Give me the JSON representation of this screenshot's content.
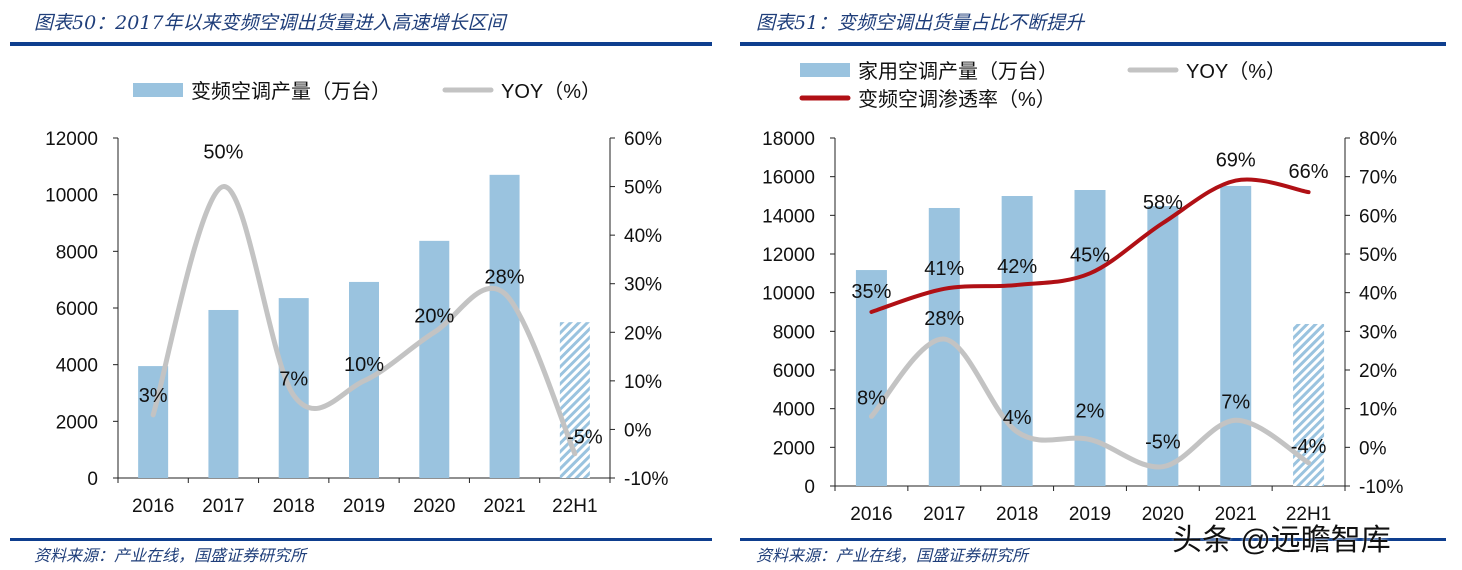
{
  "chart_data": [
    {
      "type": "bar+line",
      "title": "图表50：2017年以来变频空调出货量进入高速增长区间",
      "source": "资料来源：产业在线，国盛证券研究所",
      "categories": [
        "2016",
        "2017",
        "2018",
        "2019",
        "2020",
        "2021",
        "22H1"
      ],
      "left_axis": {
        "ylim": [
          0,
          12000
        ],
        "ticks": [
          "0",
          "2000",
          "4000",
          "6000",
          "8000",
          "10000",
          "12000"
        ]
      },
      "right_axis": {
        "ylim": [
          -10,
          60
        ],
        "ticks": [
          "-10%",
          "0%",
          "10%",
          "20%",
          "30%",
          "40%",
          "50%",
          "60%"
        ]
      },
      "legend_placement": "top",
      "series": [
        {
          "name": "变频空调产量（万台）",
          "type": "bar",
          "axis": "left",
          "color": "#9ac3df",
          "values": [
            3950,
            5930,
            6350,
            6920,
            8370,
            10700,
            5500
          ],
          "hatched_last": true
        },
        {
          "name": "YOY（%）",
          "type": "line",
          "axis": "right",
          "color": "#c3c3c3",
          "values": [
            3,
            50,
            7,
            10,
            20,
            28,
            -5
          ],
          "labels": [
            "3%",
            "50%",
            "7%",
            "10%",
            "20%",
            "28%",
            "-5%"
          ]
        }
      ]
    },
    {
      "type": "bar+line",
      "title": "图表51：变频空调出货量占比不断提升",
      "source": "资料来源：产业在线，国盛证券研究所",
      "categories": [
        "2016",
        "2017",
        "2018",
        "2019",
        "2020",
        "2021",
        "22H1"
      ],
      "left_axis": {
        "ylim": [
          0,
          18000
        ],
        "ticks": [
          "0",
          "2000",
          "4000",
          "6000",
          "8000",
          "10000",
          "12000",
          "14000",
          "16000",
          "18000"
        ]
      },
      "right_axis": {
        "ylim": [
          -10,
          80
        ],
        "ticks": [
          "-10%",
          "0%",
          "10%",
          "20%",
          "30%",
          "40%",
          "50%",
          "60%",
          "70%",
          "80%"
        ]
      },
      "legend_placement": "top",
      "series": [
        {
          "name": "家用空调产量（万台）",
          "type": "bar",
          "axis": "left",
          "color": "#9ac3df",
          "values": [
            11170,
            14380,
            15000,
            15310,
            14480,
            15520,
            8380
          ],
          "hatched_last": true
        },
        {
          "name": "YOY（%）",
          "type": "line",
          "axis": "right",
          "color": "#c3c3c3",
          "values": [
            8,
            28,
            4,
            2,
            -5,
            7,
            -4
          ],
          "labels": [
            "8%",
            "28%",
            "4%",
            "2%",
            "-5%",
            "7%",
            "-4%"
          ]
        },
        {
          "name": "变频空调渗透率（%）",
          "type": "line",
          "axis": "right",
          "color": "#b01015",
          "values": [
            35,
            41,
            42,
            45,
            58,
            69,
            66
          ],
          "labels": [
            "35%",
            "41%",
            "42%",
            "45%",
            "58%",
            "69%",
            "66%"
          ]
        }
      ]
    }
  ],
  "watermark": "头条 @远瞻智库"
}
